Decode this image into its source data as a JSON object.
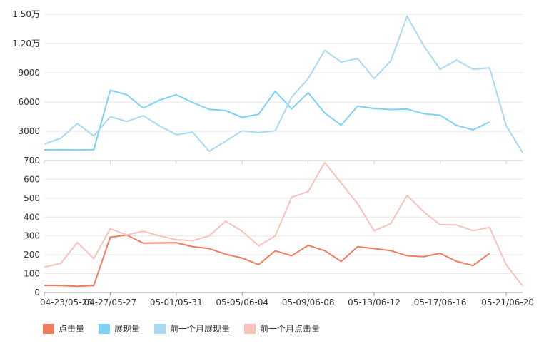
{
  "chart_data": {
    "type": "line",
    "x_ticks": [
      "04-23/05-23",
      "04-27/05-27",
      "05-01/05-31",
      "05-05/06-04",
      "05-09/06-08",
      "05-13/06-12",
      "05-17/06-16",
      "05-21/06-20"
    ],
    "panels": [
      {
        "name": "top",
        "y_range": [
          0,
          15000
        ],
        "y_ticks": [
          {
            "value": 3000,
            "label": "3000"
          },
          {
            "value": 6000,
            "label": "6000"
          },
          {
            "value": 9000,
            "label": "9000"
          },
          {
            "value": 12000,
            "label": "1.20万"
          },
          {
            "value": 15000,
            "label": "1.50万"
          }
        ],
        "series": [
          {
            "name": "展现量",
            "color": "#7fd0f3",
            "values": [
              1100,
              1120,
              1080,
              1120,
              7200,
              6750,
              5380,
              6200,
              6750,
              5950,
              5250,
              5120,
              4420,
              4750,
              7100,
              5300,
              6950,
              4880,
              3630,
              5580,
              5330,
              5230,
              5280,
              4800,
              4650,
              3600,
              3150,
              3950,
              null,
              null
            ]
          },
          {
            "name": "前一个月展现量",
            "color": "#a8daf5",
            "values": [
              1700,
              2280,
              3800,
              2520,
              4500,
              4000,
              4600,
              3550,
              2650,
              2900,
              950,
              2000,
              3050,
              2850,
              3050,
              6500,
              8400,
              11300,
              10100,
              10450,
              8400,
              10200,
              14800,
              11800,
              9350,
              10300,
              9350,
              9500,
              3600,
              800
            ]
          }
        ]
      },
      {
        "name": "bottom",
        "y_range": [
          0,
          700
        ],
        "y_ticks": [
          {
            "value": 0,
            "label": "0"
          },
          {
            "value": 100,
            "label": "100"
          },
          {
            "value": 200,
            "label": "200"
          },
          {
            "value": 300,
            "label": "300"
          },
          {
            "value": 400,
            "label": "400"
          },
          {
            "value": 500,
            "label": "500"
          },
          {
            "value": 600,
            "label": "600"
          },
          {
            "value": 700,
            "label": "700"
          }
        ],
        "series": [
          {
            "name": "点击量",
            "color": "#f07c60",
            "values": [
              38,
              37,
              33,
              37,
              293,
              305,
              262,
              263,
              264,
              243,
              233,
              203,
              183,
              148,
              221,
              195,
              250,
              222,
              165,
              243,
              233,
              222,
              195,
              190,
              208,
              165,
              143,
              208,
              null,
              null
            ]
          },
          {
            "name": "前一个月点击量",
            "color": "#f8c2bc",
            "values": [
              135,
              155,
              265,
              180,
              338,
              305,
              325,
              300,
              280,
              275,
              300,
              378,
              325,
              248,
              300,
              505,
              535,
              690,
              580,
              470,
              327,
              365,
              515,
              428,
              360,
              358,
              328,
              345,
              148,
              35
            ]
          }
        ]
      }
    ],
    "legend": [
      {
        "name": "点击量",
        "color": "#f07c60"
      },
      {
        "name": "展现量",
        "color": "#7fd0f3"
      },
      {
        "name": "前一个月展现量",
        "color": "#a8daf5"
      },
      {
        "name": "前一个月点击量",
        "color": "#f8c2bc"
      }
    ],
    "legend_position": "bottom-left",
    "grid": true
  }
}
